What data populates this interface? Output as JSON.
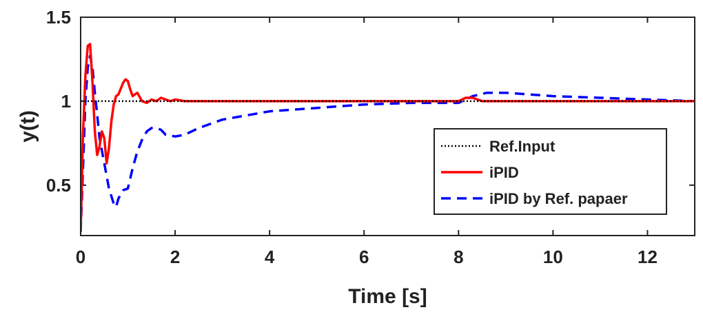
{
  "chart_data": {
    "type": "line",
    "title": "",
    "xlabel": "Time [s]",
    "ylabel": "y(t)",
    "xlim": [
      0,
      13
    ],
    "ylim": [
      0.2,
      1.5
    ],
    "xticks": [
      0,
      2,
      4,
      6,
      8,
      10,
      12
    ],
    "yticks": [
      0.5,
      1,
      1.5
    ],
    "xtick_labels": [
      "0",
      "2",
      "4",
      "6",
      "8",
      "10",
      "12"
    ],
    "ytick_labels": [
      "0.5",
      "1",
      "1.5"
    ],
    "grid": false,
    "legend_position": "bottom-right",
    "series": [
      {
        "name": "Ref.Input",
        "color": "#000000",
        "style": "dotted",
        "x": [
          0,
          13
        ],
        "y": [
          1,
          1
        ]
      },
      {
        "name": "iPID",
        "color": "#ff0000",
        "style": "solid",
        "x": [
          0,
          0.05,
          0.1,
          0.15,
          0.2,
          0.25,
          0.3,
          0.35,
          0.4,
          0.45,
          0.5,
          0.55,
          0.6,
          0.65,
          0.7,
          0.75,
          0.8,
          0.9,
          0.95,
          1.0,
          1.05,
          1.1,
          1.2,
          1.3,
          1.4,
          1.5,
          1.6,
          1.7,
          1.8,
          1.9,
          2.0,
          2.2,
          2.6,
          3,
          4,
          5,
          6,
          7,
          7.8,
          8.0,
          8.15,
          8.3,
          8.5,
          8.8,
          9.2,
          10,
          11,
          12,
          13
        ],
        "y": [
          0.22,
          0.8,
          1.15,
          1.33,
          1.34,
          1.12,
          0.82,
          0.68,
          0.73,
          0.82,
          0.78,
          0.63,
          0.72,
          0.88,
          0.98,
          1.03,
          1.04,
          1.11,
          1.13,
          1.12,
          1.07,
          1.03,
          1.05,
          1.0,
          0.99,
          1.01,
          1.0,
          1.02,
          1.01,
          1.0,
          1.01,
          1.0,
          1.0,
          1.0,
          1.0,
          1.0,
          1.0,
          1.0,
          1.0,
          1.0,
          1.02,
          1.02,
          1.0,
          1.0,
          1.0,
          1.0,
          1.0,
          1.0,
          1.0
        ]
      },
      {
        "name": "iPID by Ref. papaer",
        "color": "#0000ff",
        "style": "dashed",
        "x": [
          0,
          0.05,
          0.1,
          0.15,
          0.2,
          0.25,
          0.3,
          0.35,
          0.4,
          0.5,
          0.6,
          0.7,
          0.75,
          0.8,
          0.9,
          1.0,
          1.1,
          1.2,
          1.3,
          1.4,
          1.5,
          1.6,
          1.7,
          1.8,
          2.0,
          2.2,
          2.5,
          3,
          4,
          5,
          6,
          7,
          7.5,
          8.0,
          8.3,
          8.6,
          9.0,
          10,
          11,
          12,
          13
        ],
        "y": [
          0.22,
          0.6,
          1.0,
          1.2,
          1.27,
          1.2,
          1.05,
          0.92,
          0.78,
          0.63,
          0.48,
          0.39,
          0.37,
          0.42,
          0.47,
          0.48,
          0.6,
          0.7,
          0.77,
          0.82,
          0.84,
          0.84,
          0.83,
          0.8,
          0.79,
          0.8,
          0.84,
          0.89,
          0.94,
          0.96,
          0.98,
          0.99,
          0.99,
          0.99,
          1.03,
          1.05,
          1.05,
          1.03,
          1.02,
          1.01,
          1.0
        ]
      }
    ]
  }
}
